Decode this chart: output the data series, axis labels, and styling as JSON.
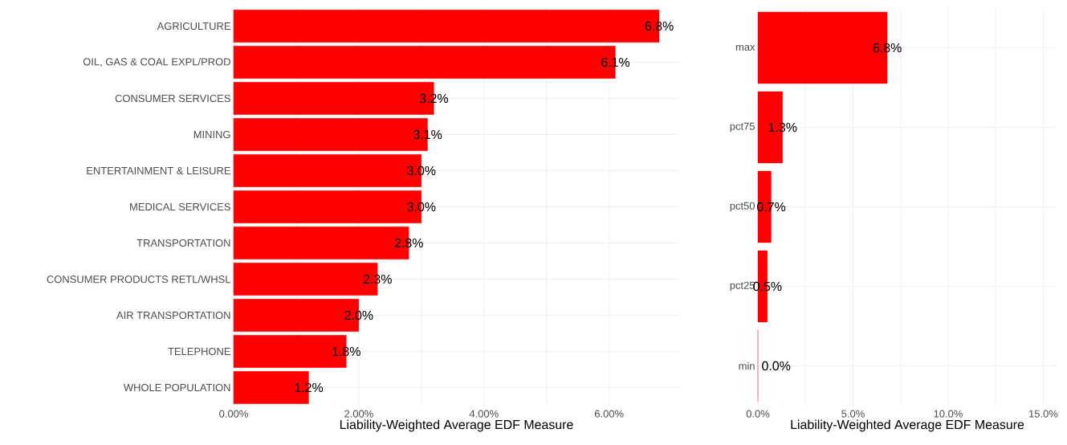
{
  "chart_data": [
    {
      "type": "bar",
      "orientation": "horizontal",
      "xlabel": "Liability-Weighted Average EDF Measure",
      "categories": [
        "AGRICULTURE",
        "OIL, GAS & COAL EXPL/PROD",
        "CONSUMER SERVICES",
        "MINING",
        "ENTERTAINMENT & LEISURE",
        "MEDICAL SERVICES",
        "TRANSPORTATION",
        "CONSUMER PRODUCTS RETL/WHSL",
        "AIR TRANSPORTATION",
        "TELEPHONE",
        "WHOLE POPULATION"
      ],
      "values": [
        6.8,
        6.1,
        3.2,
        3.1,
        3.0,
        3.0,
        2.8,
        2.3,
        2.0,
        1.8,
        1.2
      ],
      "value_labels": [
        "6.8%",
        "6.1%",
        "3.2%",
        "3.1%",
        "3.0%",
        "3.0%",
        "2.8%",
        "2.3%",
        "2.0%",
        "1.8%",
        "1.2%"
      ],
      "color": "#ff0000",
      "xlim": [
        0,
        7.12
      ],
      "xticks": [
        {
          "value": 0,
          "label": "0.00%"
        },
        {
          "value": 2,
          "label": "2.00%"
        },
        {
          "value": 4,
          "label": "4.00%"
        },
        {
          "value": 6,
          "label": "6.00%"
        }
      ],
      "grid": true
    },
    {
      "type": "bar",
      "orientation": "horizontal",
      "xlabel": "Liability-Weighted Average EDF Measure",
      "categories": [
        "max",
        "pct75",
        "pct50",
        "pct25",
        "min"
      ],
      "values": [
        6.8,
        1.3,
        0.7,
        0.5,
        0.0
      ],
      "value_labels": [
        "6.8%",
        "1.3%",
        "0.7%",
        "0.5%",
        "0.0%"
      ],
      "color": "#ff0000",
      "xlim": [
        0,
        15.7
      ],
      "xticks": [
        {
          "value": 0,
          "label": "0.0%"
        },
        {
          "value": 5,
          "label": "5.0%"
        },
        {
          "value": 10,
          "label": "10.0%"
        },
        {
          "value": 15,
          "label": "15.0%"
        }
      ],
      "grid": true
    }
  ]
}
